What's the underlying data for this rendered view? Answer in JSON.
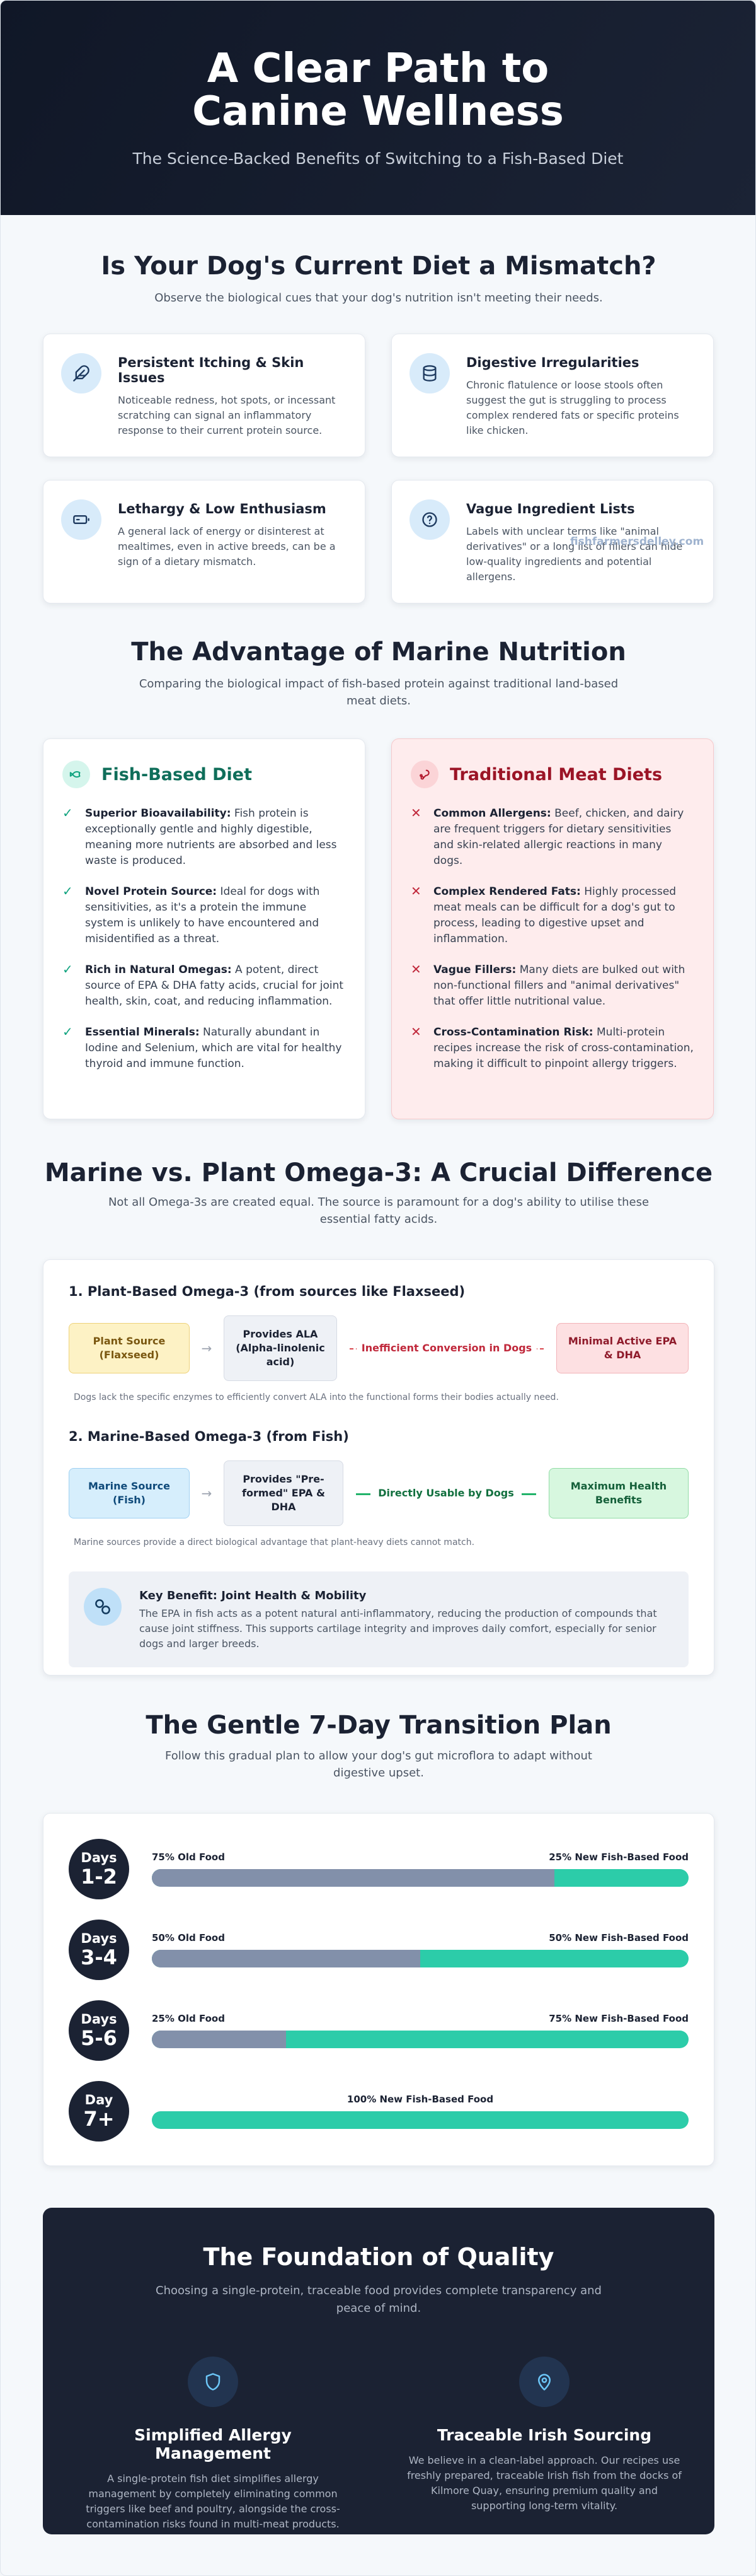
{
  "hero": {
    "title": "A Clear Path to Canine Wellness",
    "subtitle": "The Science-Backed Benefits of Switching to a Fish-Based Diet"
  },
  "mismatch": {
    "title": "Is Your Dog's Current Diet a Mismatch?",
    "subtitle": "Observe the biological cues that your dog's nutrition isn't meeting their needs.",
    "cards": [
      {
        "icon": "feather-icon",
        "title": "Persistent Itching & Skin Issues",
        "text": "Noticeable redness, hot spots, or incessant scratching can signal an inflammatory response to their current protein source."
      },
      {
        "icon": "database-icon",
        "title": "Digestive Irregularities",
        "text": "Chronic flatulence or loose stools often suggest the gut is struggling to process complex rendered fats or specific proteins like chicken."
      },
      {
        "icon": "battery-icon",
        "title": "Lethargy & Low Enthusiasm",
        "text": "A general lack of energy or disinterest at mealtimes, even in active breeds, can be a sign of a dietary mismatch."
      },
      {
        "icon": "question-icon",
        "title": "Vague Ingredient Lists",
        "text": "Labels with unclear terms like \"animal derivatives\" or a long list of fillers can hide low-quality ingredients and potential allergens."
      }
    ],
    "watermark": "fishfarmersdelley.com"
  },
  "advantage": {
    "title": "The Advantage of Marine Nutrition",
    "subtitle": "Comparing the biological impact of fish-based protein against traditional land-based meat diets.",
    "fish": {
      "title": "Fish-Based Diet",
      "mark": "✓",
      "items": [
        {
          "label": "Superior Bioavailability:",
          "text": " Fish protein is exceptionally gentle and highly digestible, meaning more nutrients are absorbed and less waste is produced."
        },
        {
          "label": "Novel Protein Source:",
          "text": " Ideal for dogs with sensitivities, as it's a protein the immune system is unlikely to have encountered and misidentified as a threat."
        },
        {
          "label": "Rich in Natural Omegas:",
          "text": " A potent, direct source of EPA & DHA fatty acids, crucial for joint health, skin, coat, and reducing inflammation."
        },
        {
          "label": "Essential Minerals:",
          "text": " Naturally abundant in Iodine and Selenium, which are vital for healthy thyroid and immune function."
        }
      ]
    },
    "meat": {
      "title": "Traditional Meat Diets",
      "mark": "✕",
      "items": [
        {
          "label": "Common Allergens:",
          "text": " Beef, chicken, and dairy are frequent triggers for dietary sensitivities and skin-related allergic reactions in many dogs."
        },
        {
          "label": "Complex Rendered Fats:",
          "text": " Highly processed meat meals can be difficult for a dog's gut to process, leading to digestive upset and inflammation."
        },
        {
          "label": "Vague Fillers:",
          "text": " Many diets are bulked out with non-functional fillers and \"animal derivatives\" that offer little nutritional value."
        },
        {
          "label": "Cross-Contamination Risk:",
          "text": " Multi-protein recipes increase the risk of cross-contamination, making it difficult to pinpoint allergy triggers."
        }
      ]
    }
  },
  "omega": {
    "title": "Marine vs. Plant Omega-3: A Crucial Difference",
    "subtitle": "Not all Omega-3s are created equal. The source is paramount for a dog's ability to utilise these essential fatty acids.",
    "plant": {
      "heading": "1. Plant-Based Omega-3 (from sources like Flaxseed)",
      "source": "Plant Source (Flaxseed)",
      "provides": "Provides ALA (Alpha-linolenic acid)",
      "arrow": "→",
      "connector": "Inefficient Conversion in Dogs",
      "result": "Minimal Active EPA & DHA",
      "note": "Dogs lack the specific enzymes to efficiently convert ALA into the functional forms their bodies actually need."
    },
    "marine": {
      "heading": "2. Marine-Based Omega-3 (from Fish)",
      "source": "Marine Source (Fish)",
      "provides": "Provides \"Pre-formed\" EPA & DHA",
      "arrow": "→",
      "connector": "Directly Usable by Dogs",
      "result": "Maximum Health Benefits",
      "note": "Marine sources provide a direct biological advantage that plant-heavy diets cannot match."
    },
    "key": {
      "title": "Key Benefit: Joint Health & Mobility",
      "text": "The EPA in fish acts as a potent natural anti-inflammatory, reducing the production of compounds that cause joint stiffness. This supports cartilage integrity and improves daily comfort, especially for senior dogs and larger breeds."
    }
  },
  "plan": {
    "title": "The Gentle 7-Day Transition Plan",
    "subtitle": "Follow this gradual plan to allow your dog's gut microflora to adapt without digestive upset.",
    "stages": [
      {
        "word": "Days",
        "range": "1-2",
        "old_label": "75% Old Food",
        "new_label": "25% New Fish-Based Food",
        "old_fraction": 0.75
      },
      {
        "word": "Days",
        "range": "3-4",
        "old_label": "50% Old Food",
        "new_label": "50% New Fish-Based Food",
        "old_fraction": 0.5
      },
      {
        "word": "Days",
        "range": "5-6",
        "old_label": "25% Old Food",
        "new_label": "75% New Fish-Based Food",
        "old_fraction": 0.25
      },
      {
        "word": "Day",
        "range": "7+",
        "old_label": "",
        "new_label": "100% New Fish-Based Food",
        "old_fraction": 0
      }
    ],
    "colors": {
      "old": "#8290aa",
      "new": "#2ccca9"
    }
  },
  "foundation": {
    "title": "The Foundation of Quality",
    "subtitle": "Choosing a single-protein, traceable food provides complete transparency and peace of mind.",
    "columns": [
      {
        "icon": "shield-icon",
        "title": "Simplified Allergy Management",
        "text": "A single-protein fish diet simplifies allergy management by completely eliminating common triggers like beef and poultry, alongside the cross-contamination risks found in multi-meat products."
      },
      {
        "icon": "map-pin-icon",
        "title": "Traceable Irish Sourcing",
        "text": "We believe in a clean-label approach. Our recipes use freshly prepared, traceable Irish fish from the docks of Kilmore Quay, ensuring premium quality and supporting long-term vitality."
      }
    ]
  }
}
